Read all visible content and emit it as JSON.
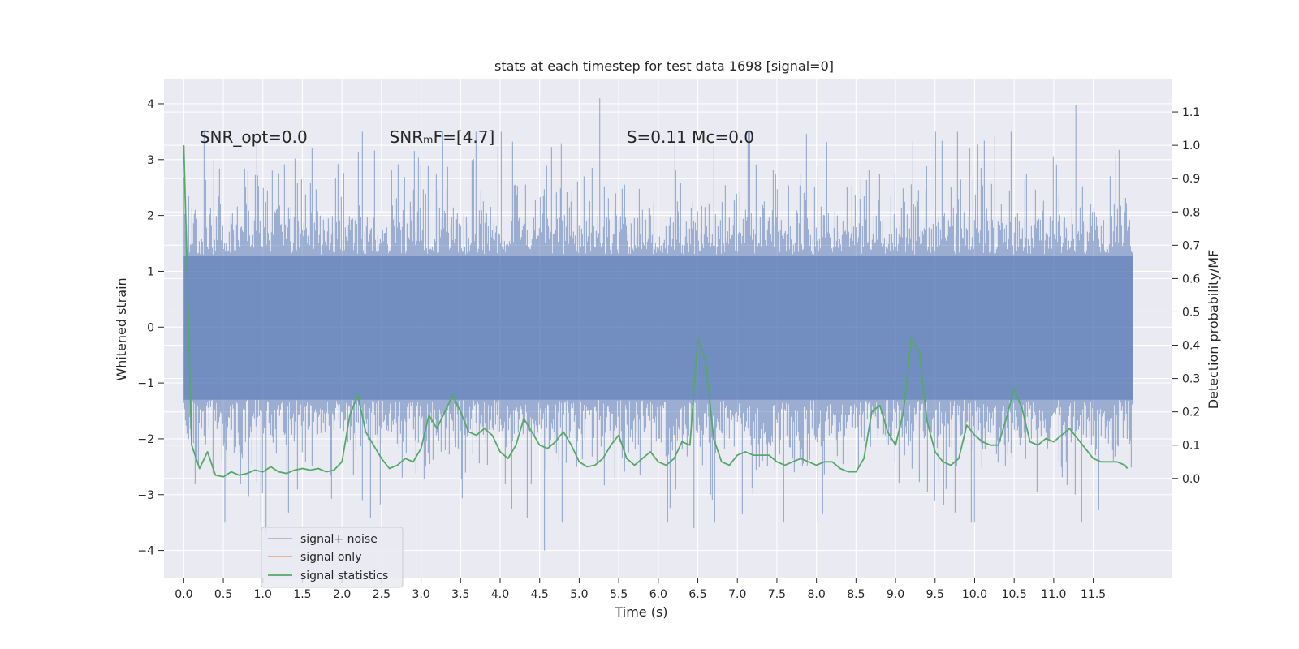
{
  "chart_data": {
    "type": "line",
    "title": "stats at each timestep for test data 1698 [signal=0]",
    "xlabel": "Time (s)",
    "ylabel": "Whitened strain",
    "y2label": "Detection probability/MF",
    "xlim": [
      -0.25,
      12.5
    ],
    "ylim": [
      -4.5,
      4.45
    ],
    "y2lim": [
      -0.3,
      1.2
    ],
    "xticks": [
      0.0,
      0.5,
      1.0,
      1.5,
      2.0,
      2.5,
      3.0,
      3.5,
      4.0,
      4.5,
      5.0,
      5.5,
      6.0,
      6.5,
      7.0,
      7.5,
      8.0,
      8.5,
      9.0,
      9.5,
      10.0,
      10.5,
      11.0,
      11.5
    ],
    "xtick_labels": [
      "0.0",
      "0.5",
      "1.0",
      "1.5",
      "2.0",
      "2.5",
      "3.0",
      "3.5",
      "4.0",
      "4.5",
      "5.0",
      "5.5",
      "6.0",
      "6.5",
      "7.0",
      "7.5",
      "8.0",
      "8.5",
      "9.0",
      "9.5",
      "10.0",
      "10.5",
      "11.0",
      "11.5"
    ],
    "yticks": [
      -4,
      -3,
      -2,
      -1,
      0,
      1,
      2,
      3,
      4
    ],
    "ytick_labels": [
      "−4",
      "−3",
      "−2",
      "−1",
      "0",
      "1",
      "2",
      "3",
      "4"
    ],
    "y2ticks": [
      0.0,
      0.1,
      0.2,
      0.3,
      0.4,
      0.5,
      0.6,
      0.7,
      0.8,
      0.9,
      1.0,
      1.1
    ],
    "y2tick_labels": [
      "0.0",
      "0.1",
      "0.2",
      "0.3",
      "0.4",
      "0.5",
      "0.6",
      "0.7",
      "0.8",
      "0.9",
      "1.0",
      "1.1"
    ],
    "grid": true,
    "legend_position": "lower-left",
    "legend": [
      "signal+ noise",
      "signal only",
      "signal statistics"
    ],
    "annotations": [
      {
        "text": "SNR_opt=0.0",
        "x": 0.2,
        "y": 3.3
      },
      {
        "text": "SNRₘF=[4.7]",
        "x": 2.6,
        "y": 3.3
      },
      {
        "text": "S=0.11   Mᴄ=0.0",
        "x": 5.6,
        "y": 3.3
      }
    ],
    "series": [
      {
        "name": "signal+ noise",
        "color": "#4c72b0",
        "axis": "left",
        "kind": "noise",
        "duration_s": 12.0,
        "peaks": [
          {
            "x": 5.26,
            "y": 4.1
          },
          {
            "x": 11.28,
            "y": 3.98
          },
          {
            "x": 4.56,
            "y": -4.0
          },
          {
            "x": 6.45,
            "y": -3.6
          },
          {
            "x": 1.04,
            "y": -3.7
          },
          {
            "x": 0.52,
            "y": -3.5
          }
        ]
      },
      {
        "name": "signal only",
        "color": "#dd8452",
        "axis": "left",
        "x": [],
        "y": []
      },
      {
        "name": "signal statistics",
        "color": "#55a868",
        "axis": "right",
        "x": [
          0.0,
          0.1,
          0.2,
          0.3,
          0.4,
          0.5,
          0.6,
          0.7,
          0.8,
          0.9,
          1.0,
          1.1,
          1.2,
          1.3,
          1.4,
          1.5,
          1.6,
          1.7,
          1.8,
          1.9,
          2.0,
          2.1,
          2.2,
          2.3,
          2.4,
          2.5,
          2.6,
          2.7,
          2.8,
          2.9,
          3.0,
          3.1,
          3.2,
          3.3,
          3.4,
          3.5,
          3.6,
          3.7,
          3.8,
          3.9,
          4.0,
          4.1,
          4.2,
          4.3,
          4.4,
          4.5,
          4.6,
          4.7,
          4.8,
          4.9,
          5.0,
          5.1,
          5.2,
          5.3,
          5.4,
          5.5,
          5.6,
          5.7,
          5.8,
          5.9,
          6.0,
          6.1,
          6.2,
          6.3,
          6.4,
          6.5,
          6.6,
          6.7,
          6.8,
          6.9,
          7.0,
          7.1,
          7.2,
          7.3,
          7.4,
          7.5,
          7.6,
          7.7,
          7.8,
          7.9,
          8.0,
          8.1,
          8.2,
          8.3,
          8.4,
          8.5,
          8.6,
          8.7,
          8.8,
          8.9,
          9.0,
          9.1,
          9.2,
          9.3,
          9.4,
          9.5,
          9.6,
          9.7,
          9.8,
          9.9,
          10.0,
          10.1,
          10.2,
          10.3,
          10.4,
          10.5,
          10.6,
          10.7,
          10.8,
          10.9,
          11.0,
          11.1,
          11.2,
          11.3,
          11.4,
          11.5,
          11.6,
          11.7,
          11.8,
          11.9,
          11.93
        ],
        "y": [
          1.0,
          0.1,
          0.03,
          0.08,
          0.01,
          0.005,
          0.02,
          0.01,
          0.015,
          0.025,
          0.02,
          0.035,
          0.02,
          0.015,
          0.025,
          0.03,
          0.025,
          0.03,
          0.02,
          0.025,
          0.05,
          0.19,
          0.25,
          0.14,
          0.1,
          0.06,
          0.03,
          0.04,
          0.06,
          0.05,
          0.09,
          0.19,
          0.15,
          0.2,
          0.25,
          0.2,
          0.14,
          0.13,
          0.15,
          0.13,
          0.08,
          0.06,
          0.1,
          0.18,
          0.14,
          0.1,
          0.09,
          0.11,
          0.14,
          0.1,
          0.05,
          0.035,
          0.04,
          0.06,
          0.1,
          0.13,
          0.06,
          0.04,
          0.06,
          0.08,
          0.05,
          0.04,
          0.06,
          0.11,
          0.1,
          0.42,
          0.35,
          0.12,
          0.05,
          0.04,
          0.07,
          0.08,
          0.07,
          0.07,
          0.07,
          0.05,
          0.04,
          0.05,
          0.06,
          0.05,
          0.04,
          0.05,
          0.05,
          0.03,
          0.02,
          0.02,
          0.06,
          0.2,
          0.22,
          0.14,
          0.1,
          0.2,
          0.42,
          0.38,
          0.17,
          0.08,
          0.05,
          0.04,
          0.06,
          0.16,
          0.13,
          0.11,
          0.1,
          0.1,
          0.18,
          0.27,
          0.21,
          0.11,
          0.1,
          0.12,
          0.11,
          0.13,
          0.15,
          0.12,
          0.09,
          0.06,
          0.05,
          0.05,
          0.05,
          0.04,
          0.03
        ]
      }
    ]
  }
}
